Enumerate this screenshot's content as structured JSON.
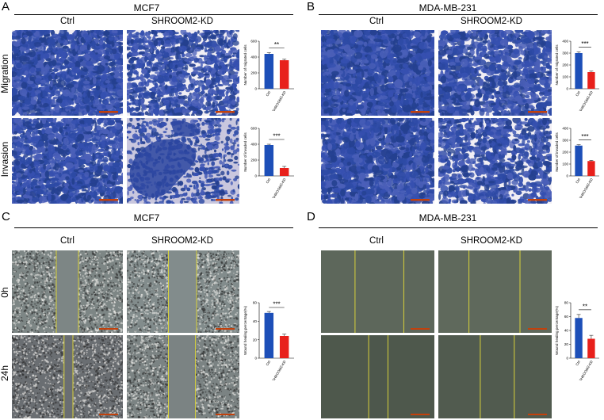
{
  "panels": {
    "A": {
      "letter": "A",
      "title": "MCF7",
      "col_ctrl": "Ctrl",
      "col_kd": "SHROOM2-KD",
      "row1": "Migration",
      "row2": "Invasion"
    },
    "B": {
      "letter": "B",
      "title": "MDA-MB-231",
      "col_ctrl": "Ctrl",
      "col_kd": "SHROOM2-KD"
    },
    "C": {
      "letter": "C",
      "title": "MCF7",
      "col_ctrl": "Ctrl",
      "col_kd": "SHROOM2-KD",
      "row1": "0h",
      "row2": "24h"
    },
    "D": {
      "letter": "D",
      "title": "MDA-MB-231",
      "col_ctrl": "Ctrl",
      "col_kd": "SHROOM2-KD"
    }
  },
  "colors": {
    "ctrl": "#1d4fb8",
    "kd": "#e8201b",
    "stain": "#2d4aa5"
  },
  "chart_data": [
    {
      "type": "bar",
      "id": "A-mig",
      "categories": [
        "Ctrl",
        "SHROOM2-KD"
      ],
      "values": [
        440,
        360
      ],
      "errors": [
        15,
        12
      ],
      "ylabel": "Number of migrated cells",
      "ylim": [
        0,
        600
      ],
      "yticks": [
        0,
        200,
        400,
        600
      ],
      "significance": "**"
    },
    {
      "type": "bar",
      "id": "A-inv",
      "categories": [
        "Ctrl",
        "SHROOM2-KD"
      ],
      "values": [
        390,
        100
      ],
      "errors": [
        10,
        20
      ],
      "ylabel": "Number of invaded cells",
      "ylim": [
        0,
        600
      ],
      "yticks": [
        0,
        200,
        400,
        600
      ],
      "significance": "***"
    },
    {
      "type": "bar",
      "id": "B-mig",
      "categories": [
        "Ctrl",
        "SHROOM2-KD"
      ],
      "values": [
        300,
        140
      ],
      "errors": [
        10,
        8
      ],
      "ylabel": "Number of migrated cells",
      "ylim": [
        0,
        400
      ],
      "yticks": [
        0,
        100,
        200,
        300,
        400
      ],
      "significance": "***"
    },
    {
      "type": "bar",
      "id": "B-inv",
      "categories": [
        "Ctrl",
        "SHROOM2-KD"
      ],
      "values": [
        255,
        125
      ],
      "errors": [
        8,
        6
      ],
      "ylabel": "Number of invaded cells",
      "ylim": [
        0,
        400
      ],
      "yticks": [
        0,
        100,
        200,
        300,
        400
      ],
      "significance": "***"
    },
    {
      "type": "bar",
      "id": "C-wh",
      "categories": [
        "Ctrl",
        "SHROOM2-KD"
      ],
      "values": [
        49,
        24
      ],
      "errors": [
        1.5,
        2
      ],
      "ylabel": "Wound healing percentage(%)",
      "ylim": [
        0,
        60
      ],
      "yticks": [
        0,
        20,
        40,
        60
      ],
      "significance": "***"
    },
    {
      "type": "bar",
      "id": "D-wh",
      "categories": [
        "Ctrl",
        "SHROOM2-KD"
      ],
      "values": [
        58,
        28
      ],
      "errors": [
        5,
        5
      ],
      "ylabel": "Wound healing percentage(%)",
      "ylim": [
        0,
        80
      ],
      "yticks": [
        0,
        20,
        40,
        60,
        80
      ],
      "significance": "**"
    }
  ]
}
